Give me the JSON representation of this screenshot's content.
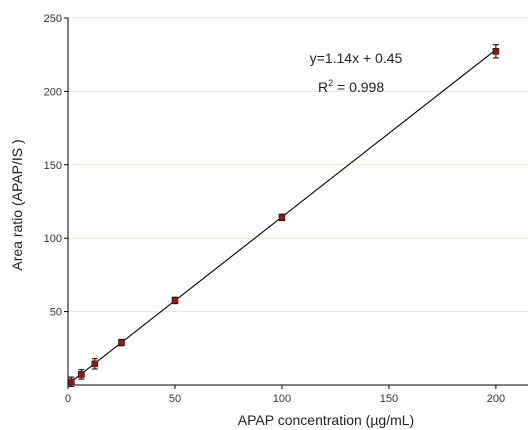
{
  "chart_data": {
    "type": "scatter",
    "xlabel": "APAP concentration (µg/mL)",
    "ylabel": "Area ratio (APAP/IS )",
    "xlim": [
      0,
      215
    ],
    "ylim": [
      0,
      250
    ],
    "xticks": [
      0,
      50,
      100,
      150,
      200
    ],
    "yticks": [
      50,
      100,
      150,
      200,
      250
    ],
    "grid": true,
    "points": [
      {
        "x": 1.56,
        "y": 2.2,
        "err": 3.2
      },
      {
        "x": 6.25,
        "y": 7.2,
        "err": 3.2
      },
      {
        "x": 12.5,
        "y": 14.4,
        "err": 3.5
      },
      {
        "x": 25,
        "y": 28.9,
        "err": 2.2
      },
      {
        "x": 50,
        "y": 57.6,
        "err": 2.2
      },
      {
        "x": 100,
        "y": 114.2,
        "err": 2.2
      },
      {
        "x": 200,
        "y": 227.3,
        "err": 4.5
      }
    ],
    "fit": {
      "slope": 1.14,
      "intercept": 0.45,
      "x_range": [
        0,
        200
      ]
    },
    "annotations": {
      "equation": "y=1.14x + 0.45",
      "r2_prefix": "R",
      "r2_sup": "2",
      "r2_value": " = 0.998"
    },
    "colors": {
      "marker": "#8b1a1a",
      "line": "#000000",
      "grid": "#e8e6d2",
      "axis": "#000000"
    }
  }
}
